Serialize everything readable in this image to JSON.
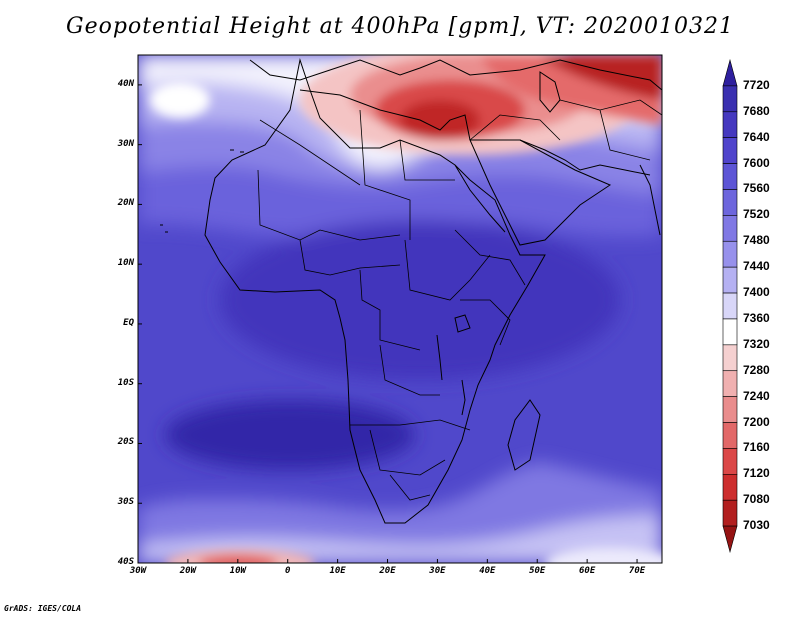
{
  "title": "Geopotential Height at 400hPa [gpm], VT: 2020010321",
  "credit": "GrADS: IGES/COLA",
  "map": {
    "lon_range": [
      -30,
      75
    ],
    "lat_range": [
      -40,
      45
    ],
    "lon_ticks": [
      {
        "value": -30,
        "label": "30W"
      },
      {
        "value": -20,
        "label": "20W"
      },
      {
        "value": -10,
        "label": "10W"
      },
      {
        "value": 0,
        "label": "0"
      },
      {
        "value": 10,
        "label": "10E"
      },
      {
        "value": 20,
        "label": "20E"
      },
      {
        "value": 30,
        "label": "30E"
      },
      {
        "value": 40,
        "label": "40E"
      },
      {
        "value": 50,
        "label": "50E"
      },
      {
        "value": 60,
        "label": "60E"
      },
      {
        "value": 70,
        "label": "70E"
      }
    ],
    "lat_ticks": [
      {
        "value": 40,
        "label": "40N"
      },
      {
        "value": 30,
        "label": "30N"
      },
      {
        "value": 20,
        "label": "20N"
      },
      {
        "value": 10,
        "label": "10N"
      },
      {
        "value": 0,
        "label": "EQ"
      },
      {
        "value": -10,
        "label": "10S"
      },
      {
        "value": -20,
        "label": "20S"
      },
      {
        "value": -30,
        "label": "30S"
      },
      {
        "value": -40,
        "label": "40S"
      }
    ]
  },
  "colorbar": {
    "labels": [
      "7720",
      "7680",
      "7640",
      "7600",
      "7560",
      "7520",
      "7480",
      "7440",
      "7400",
      "7360",
      "7320",
      "7280",
      "7240",
      "7200",
      "7160",
      "7120",
      "7080",
      "7030"
    ],
    "colors": [
      "#2e1f9e",
      "#3a2fb0",
      "#4538bf",
      "#5044cc",
      "#5d55d6",
      "#6d66dd",
      "#8078e4",
      "#9791ec",
      "#b5b1f2",
      "#d8d6f8",
      "#ffffff",
      "#f5d0d0",
      "#f0b0b0",
      "#e98c8c",
      "#e26868",
      "#db4848",
      "#cd2e2e",
      "#b21f1f",
      "#951313"
    ]
  }
}
